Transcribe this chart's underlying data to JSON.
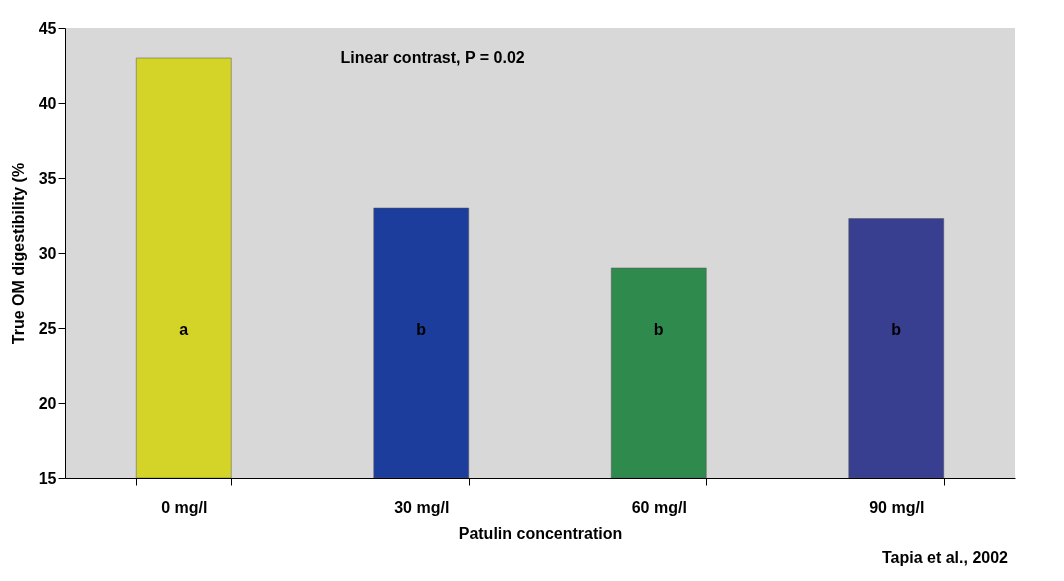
{
  "chart_data": {
    "type": "bar",
    "xlabel": "Patulin concentration",
    "ylabel": "True OM digestibility (%",
    "categories": [
      "0 mg/l",
      "30 mg/l",
      "60 mg/l",
      "90 mg/l"
    ],
    "values": [
      43,
      33,
      29,
      32.3
    ],
    "colors": [
      "#d4d428",
      "#1c3d9c",
      "#2f8a4e",
      "#393f90"
    ],
    "ylim": [
      15,
      45
    ],
    "yticks": [
      15,
      20,
      25,
      30,
      35,
      40,
      45
    ],
    "grid": false,
    "annotations": [
      "a",
      "b",
      "b",
      "b",
      "Linear contrast, P = 0.02",
      "Tapia et al., 2002"
    ]
  }
}
